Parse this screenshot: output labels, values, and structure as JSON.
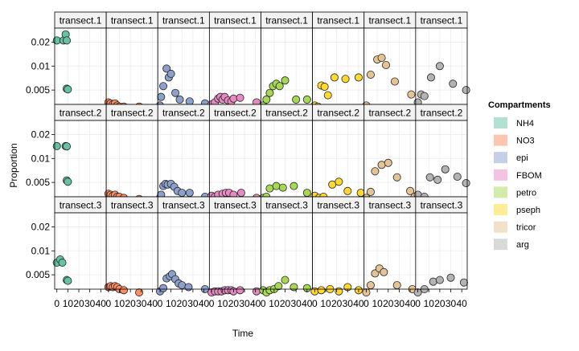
{
  "chart_data": {
    "type": "scatter",
    "facets": {
      "columns": [
        "NH4",
        "NO3",
        "epi",
        "FBOM",
        "petro",
        "pseph",
        "tricor",
        "arg"
      ],
      "rows": [
        "transect.1",
        "transect.2",
        "transect.3"
      ]
    },
    "xlabel": "Time",
    "ylabel": "Proportion",
    "x_ticks": [
      0,
      10,
      20,
      30,
      40
    ],
    "x_tick_labels": [
      "0",
      "10",
      "20",
      "30",
      "40"
    ],
    "y_ticks": [
      0.005,
      0.01,
      0.02
    ],
    "y_tick_labels": [
      "0.005",
      "0.01",
      "0.02"
    ],
    "y_scale": "log",
    "xlim": [
      -2,
      45
    ],
    "ylim": [
      0.0033,
      0.03
    ],
    "grid": true,
    "legend": {
      "title": "Compartments",
      "position": "right",
      "items": [
        {
          "name": "NH4",
          "color": "#66C2A5"
        },
        {
          "name": "NO3",
          "color": "#FC8D62"
        },
        {
          "name": "epi",
          "color": "#8DA0CB"
        },
        {
          "name": "FBOM",
          "color": "#E78AC3"
        },
        {
          "name": "petro",
          "color": "#A6D854"
        },
        {
          "name": "pseph",
          "color": "#FFD92F"
        },
        {
          "name": "tricor",
          "color": "#E5C494"
        },
        {
          "name": "arg",
          "color": "#B3B3B3"
        }
      ]
    },
    "panels": [
      {
        "row": "transect.1",
        "compartment": "NH4",
        "points": [
          [
            0,
            0.021
          ],
          [
            6,
            0.021
          ],
          [
            8,
            0.025
          ],
          [
            9,
            0.021
          ],
          [
            9,
            0.0052
          ],
          [
            10,
            0.0051
          ]
        ]
      },
      {
        "row": "transect.1",
        "compartment": "NO3",
        "points": [
          [
            0,
            0.0035
          ],
          [
            2,
            0.0034
          ],
          [
            4,
            0.0033
          ],
          [
            6,
            0.0034
          ],
          [
            8,
            0.0032
          ],
          [
            10,
            0.0031
          ],
          [
            14,
            0.0031
          ],
          [
            28,
            0.0031
          ]
        ]
      },
      {
        "row": "transect.1",
        "compartment": "epi",
        "points": [
          [
            0,
            0.0032
          ],
          [
            1,
            0.0041
          ],
          [
            3,
            0.0056
          ],
          [
            6,
            0.0093
          ],
          [
            8,
            0.0072
          ],
          [
            10,
            0.008
          ],
          [
            14,
            0.0046
          ],
          [
            18,
            0.0038
          ],
          [
            27,
            0.0036
          ],
          [
            41,
            0.0034
          ]
        ]
      },
      {
        "row": "transect.1",
        "compartment": "FBOM",
        "points": [
          [
            0,
            0.0033
          ],
          [
            3,
            0.0035
          ],
          [
            6,
            0.0039
          ],
          [
            8,
            0.0041
          ],
          [
            10,
            0.0038
          ],
          [
            12,
            0.0041
          ],
          [
            15,
            0.0037
          ],
          [
            18,
            0.0036
          ],
          [
            20,
            0.0039
          ],
          [
            26,
            0.004
          ],
          [
            41,
            0.0035
          ]
        ]
      },
      {
        "row": "transect.1",
        "compartment": "petro",
        "points": [
          [
            0,
            0.0032
          ],
          [
            3,
            0.0038
          ],
          [
            6,
            0.0046
          ],
          [
            9,
            0.0056
          ],
          [
            12,
            0.006
          ],
          [
            15,
            0.0056
          ],
          [
            20,
            0.0066
          ],
          [
            30,
            0.0038
          ],
          [
            40,
            0.0038
          ]
        ]
      },
      {
        "row": "transect.1",
        "compartment": "pseph",
        "points": [
          [
            0,
            0.0032
          ],
          [
            3,
            0.0031
          ],
          [
            6,
            0.0057
          ],
          [
            9,
            0.0055
          ],
          [
            12,
            0.0043
          ],
          [
            18,
            0.0072
          ],
          [
            28,
            0.0069
          ],
          [
            40,
            0.0072
          ]
        ]
      },
      {
        "row": "transect.1",
        "compartment": "tricor",
        "points": [
          [
            0,
            0.0032
          ],
          [
            4,
            0.0078
          ],
          [
            10,
            0.0121
          ],
          [
            14,
            0.0127
          ],
          [
            18,
            0.0103
          ],
          [
            26,
            0.0064
          ],
          [
            41,
            0.0044
          ]
        ]
      },
      {
        "row": "transect.1",
        "compartment": "arg",
        "points": [
          [
            0,
            0.0035
          ],
          [
            3,
            0.0044
          ],
          [
            6,
            0.0042
          ],
          [
            12,
            0.0072
          ],
          [
            20,
            0.01
          ],
          [
            32,
            0.006
          ],
          [
            44,
            0.005
          ]
        ]
      },
      {
        "row": "transect.2",
        "compartment": "NH4",
        "points": [
          [
            0,
            0.0143
          ],
          [
            8,
            0.0143
          ],
          [
            9,
            0.0142
          ],
          [
            9,
            0.0053
          ],
          [
            10,
            0.0051
          ]
        ]
      },
      {
        "row": "transect.2",
        "compartment": "NO3",
        "points": [
          [
            0,
            0.0036
          ],
          [
            2,
            0.0035
          ],
          [
            4,
            0.0034
          ],
          [
            6,
            0.0035
          ],
          [
            8,
            0.0033
          ],
          [
            10,
            0.0033
          ],
          [
            14,
            0.0032
          ],
          [
            28,
            0.0031
          ]
        ]
      },
      {
        "row": "transect.2",
        "compartment": "epi",
        "points": [
          [
            0,
            0.0032
          ],
          [
            1,
            0.0035
          ],
          [
            3,
            0.0045
          ],
          [
            5,
            0.0048
          ],
          [
            7,
            0.0047
          ],
          [
            10,
            0.0048
          ],
          [
            13,
            0.0044
          ],
          [
            16,
            0.0039
          ],
          [
            20,
            0.0037
          ],
          [
            27,
            0.0037
          ],
          [
            41,
            0.0033
          ]
        ]
      },
      {
        "row": "transect.2",
        "compartment": "FBOM",
        "points": [
          [
            0,
            0.0034
          ],
          [
            3,
            0.0033
          ],
          [
            6,
            0.0035
          ],
          [
            10,
            0.0036
          ],
          [
            13,
            0.0037
          ],
          [
            16,
            0.0037
          ],
          [
            20,
            0.0035
          ],
          [
            27,
            0.0037
          ],
          [
            41,
            0.0032
          ]
        ]
      },
      {
        "row": "transect.2",
        "compartment": "petro",
        "points": [
          [
            0,
            0.0032
          ],
          [
            3,
            0.0033
          ],
          [
            6,
            0.0042
          ],
          [
            12,
            0.0045
          ],
          [
            18,
            0.0043
          ],
          [
            28,
            0.0045
          ],
          [
            40,
            0.0037
          ]
        ]
      },
      {
        "row": "transect.2",
        "compartment": "pseph",
        "points": [
          [
            0,
            0.0034
          ],
          [
            4,
            0.0032
          ],
          [
            8,
            0.0033
          ],
          [
            16,
            0.0047
          ],
          [
            22,
            0.0051
          ],
          [
            30,
            0.0039
          ],
          [
            42,
            0.0037
          ]
        ]
      },
      {
        "row": "transect.2",
        "compartment": "tricor",
        "points": [
          [
            0,
            0.0032
          ],
          [
            4,
            0.0038
          ],
          [
            8,
            0.0069
          ],
          [
            14,
            0.0083
          ],
          [
            20,
            0.0088
          ],
          [
            28,
            0.0058
          ],
          [
            40,
            0.0039
          ],
          [
            44,
            0.0033
          ]
        ]
      },
      {
        "row": "transect.2",
        "compartment": "arg",
        "points": [
          [
            0,
            0.0035
          ],
          [
            6,
            0.0033
          ],
          [
            11,
            0.0058
          ],
          [
            18,
            0.0054
          ],
          [
            25,
            0.0073
          ],
          [
            36,
            0.0059
          ],
          [
            44,
            0.0049
          ]
        ]
      },
      {
        "row": "transect.3",
        "compartment": "NH4",
        "points": [
          [
            0,
            0.0071
          ],
          [
            3,
            0.0078
          ],
          [
            5,
            0.0071
          ],
          [
            9,
            0.0043
          ],
          [
            10,
            0.0042
          ]
        ]
      },
      {
        "row": "transect.3",
        "compartment": "NO3",
        "points": [
          [
            0,
            0.0035
          ],
          [
            2,
            0.0036
          ],
          [
            4,
            0.0035
          ],
          [
            6,
            0.0036
          ],
          [
            8,
            0.0035
          ],
          [
            10,
            0.0033
          ],
          [
            14,
            0.0032
          ],
          [
            28,
            0.003
          ]
        ]
      },
      {
        "row": "transect.3",
        "compartment": "epi",
        "points": [
          [
            0,
            0.0031
          ],
          [
            3,
            0.0034
          ],
          [
            6,
            0.0045
          ],
          [
            9,
            0.0048
          ],
          [
            11,
            0.0051
          ],
          [
            14,
            0.0044
          ],
          [
            17,
            0.0039
          ],
          [
            20,
            0.0037
          ],
          [
            26,
            0.0035
          ],
          [
            41,
            0.0033
          ]
        ]
      },
      {
        "row": "transect.3",
        "compartment": "FBOM",
        "points": [
          [
            0,
            0.003
          ],
          [
            3,
            0.0031
          ],
          [
            6,
            0.0031
          ],
          [
            9,
            0.0031
          ],
          [
            12,
            0.0032
          ],
          [
            15,
            0.0032
          ],
          [
            18,
            0.0032
          ],
          [
            20,
            0.0031
          ],
          [
            26,
            0.0032
          ],
          [
            41,
            0.0031
          ]
        ]
      },
      {
        "row": "transect.3",
        "compartment": "petro",
        "points": [
          [
            0,
            0.0032
          ],
          [
            3,
            0.003
          ],
          [
            6,
            0.0032
          ],
          [
            10,
            0.0033
          ],
          [
            14,
            0.0036
          ],
          [
            20,
            0.0043
          ],
          [
            28,
            0.0035
          ],
          [
            40,
            0.0034
          ]
        ]
      },
      {
        "row": "transect.3",
        "compartment": "pseph",
        "points": [
          [
            0,
            0.0031
          ],
          [
            6,
            0.0032
          ],
          [
            14,
            0.0033
          ],
          [
            22,
            0.0031
          ],
          [
            30,
            0.0035
          ],
          [
            40,
            0.0032
          ]
        ]
      },
      {
        "row": "transect.3",
        "compartment": "tricor",
        "points": [
          [
            0,
            0.003
          ],
          [
            4,
            0.0037
          ],
          [
            8,
            0.0052
          ],
          [
            12,
            0.006
          ],
          [
            16,
            0.0054
          ],
          [
            28,
            0.0037
          ],
          [
            42,
            0.0033
          ]
        ]
      },
      {
        "row": "transect.3",
        "compartment": "arg",
        "points": [
          [
            0,
            0.003
          ],
          [
            6,
            0.0033
          ],
          [
            14,
            0.0041
          ],
          [
            20,
            0.0043
          ],
          [
            30,
            0.0046
          ],
          [
            42,
            0.004
          ]
        ]
      }
    ]
  }
}
